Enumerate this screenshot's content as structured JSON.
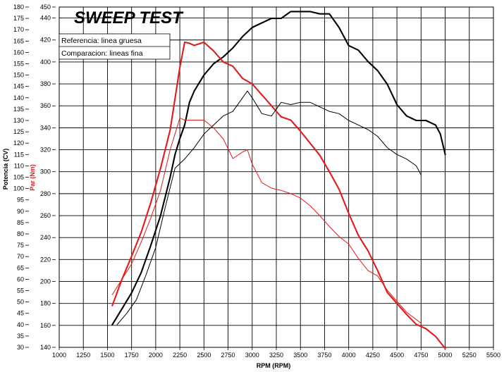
{
  "chart_data": {
    "type": "line",
    "title": "SWEEP TEST",
    "xlabel": "RPM (RPM)",
    "ylabel_left": "Potencia (CV)",
    "ylabel_right": "Par (Nm)",
    "legend": [
      "Referencia: linea gruesa",
      "Comparacion: lineas fina"
    ],
    "xlim": [
      1000,
      5500
    ],
    "ylim_left": [
      30,
      180
    ],
    "ylim_right": [
      140,
      450
    ],
    "x_ticks": [
      "1000",
      "1250",
      "1500",
      "1750",
      "2000",
      "2250",
      "2500",
      "2750",
      "3000",
      "3250",
      "3500",
      "3750",
      "4000",
      "4250",
      "4500",
      "4750",
      "5000",
      "5250",
      "5500"
    ],
    "y_left_ticks": [
      "30",
      "35",
      "40",
      "45",
      "50",
      "55",
      "60",
      "65",
      "70",
      "75",
      "80",
      "85",
      "90",
      "95",
      "100",
      "105",
      "110",
      "115",
      "120",
      "125",
      "130",
      "135",
      "140",
      "145",
      "150",
      "155",
      "160",
      "165",
      "170",
      "175",
      "180"
    ],
    "y_right_ticks": [
      "140",
      "160",
      "180",
      "200",
      "220",
      "240",
      "260",
      "280",
      "300",
      "320",
      "340",
      "360",
      "380",
      "400",
      "420",
      "440",
      "450"
    ],
    "colors": {
      "power": "#000000",
      "torque": "#e41a1a",
      "grid": "#000000"
    },
    "grid": true,
    "legend_position": "top-left",
    "series": [
      {
        "name": "Referencia: linea gruesa",
        "role": "power",
        "axis": "left",
        "thick": true,
        "x": [
          1550,
          1650,
          1750,
          1850,
          1950,
          2050,
          2150,
          2200,
          2250,
          2300,
          2350,
          2400,
          2500,
          2600,
          2700,
          2800,
          2900,
          3000,
          3100,
          3200,
          3300,
          3400,
          3500,
          3600,
          3700,
          3800,
          3900,
          4000,
          4100,
          4200,
          4300,
          4400,
          4500,
          4600,
          4700,
          4800,
          4900,
          4950,
          5000
        ],
        "y": [
          40,
          47,
          54,
          63,
          75,
          88,
          105,
          115,
          122,
          128,
          138,
          143,
          150,
          155,
          158,
          162,
          167,
          171,
          173,
          175,
          175,
          178,
          178,
          178,
          177,
          177,
          171,
          163,
          161,
          156,
          152,
          146,
          137,
          132,
          130,
          130,
          128,
          124,
          115
        ]
      },
      {
        "name": "Referencia: linea gruesa",
        "role": "torque",
        "axis": "right",
        "thick": true,
        "x": [
          1550,
          1650,
          1750,
          1850,
          1950,
          2050,
          2150,
          2250,
          2300,
          2350,
          2400,
          2500,
          2600,
          2700,
          2800,
          2900,
          3000,
          3100,
          3200,
          3300,
          3400,
          3500,
          3600,
          3700,
          3800,
          3900,
          4000,
          4100,
          4200,
          4300,
          4400,
          4500,
          4600,
          4700,
          4800,
          4900,
          5000
        ],
        "y": [
          178,
          202,
          223,
          245,
          272,
          303,
          338,
          395,
          418,
          417,
          415,
          418,
          410,
          400,
          396,
          385,
          380,
          370,
          360,
          350,
          347,
          337,
          326,
          315,
          300,
          284,
          262,
          242,
          228,
          210,
          190,
          180,
          170,
          161,
          157,
          150,
          139
        ]
      },
      {
        "name": "Comparacion: lineas fina",
        "role": "power",
        "axis": "left",
        "thick": false,
        "x": [
          1600,
          1700,
          1800,
          1900,
          2000,
          2100,
          2200,
          2300,
          2400,
          2500,
          2600,
          2700,
          2800,
          2900,
          2950,
          3000,
          3100,
          3200,
          3300,
          3400,
          3500,
          3600,
          3700,
          3800,
          3900,
          4000,
          4100,
          4200,
          4300,
          4400,
          4500,
          4600,
          4700,
          4750
        ],
        "y": [
          40,
          45,
          51,
          62,
          74,
          92,
          109,
          113,
          118,
          124,
          128,
          132,
          134,
          140,
          143,
          140,
          133,
          132,
          138,
          137,
          138,
          138,
          136,
          134,
          133,
          130,
          128,
          126,
          123,
          118,
          115,
          113,
          110,
          106
        ]
      },
      {
        "name": "Comparacion: lineas fina",
        "role": "torque",
        "axis": "right",
        "thick": false,
        "x": [
          1550,
          1650,
          1750,
          1850,
          1950,
          2050,
          2150,
          2250,
          2300,
          2400,
          2500,
          2600,
          2700,
          2800,
          2900,
          2950,
          3000,
          3100,
          3200,
          3300,
          3400,
          3500,
          3600,
          3700,
          3800,
          3900,
          4000,
          4100,
          4200,
          4300,
          4400,
          4500,
          4600,
          4750
        ],
        "y": [
          188,
          202,
          216,
          236,
          258,
          283,
          320,
          349,
          347,
          347,
          347,
          340,
          330,
          312,
          318,
          320,
          307,
          290,
          285,
          283,
          280,
          276,
          269,
          260,
          250,
          241,
          234,
          221,
          210,
          205,
          192,
          182,
          172,
          162
        ]
      }
    ]
  }
}
